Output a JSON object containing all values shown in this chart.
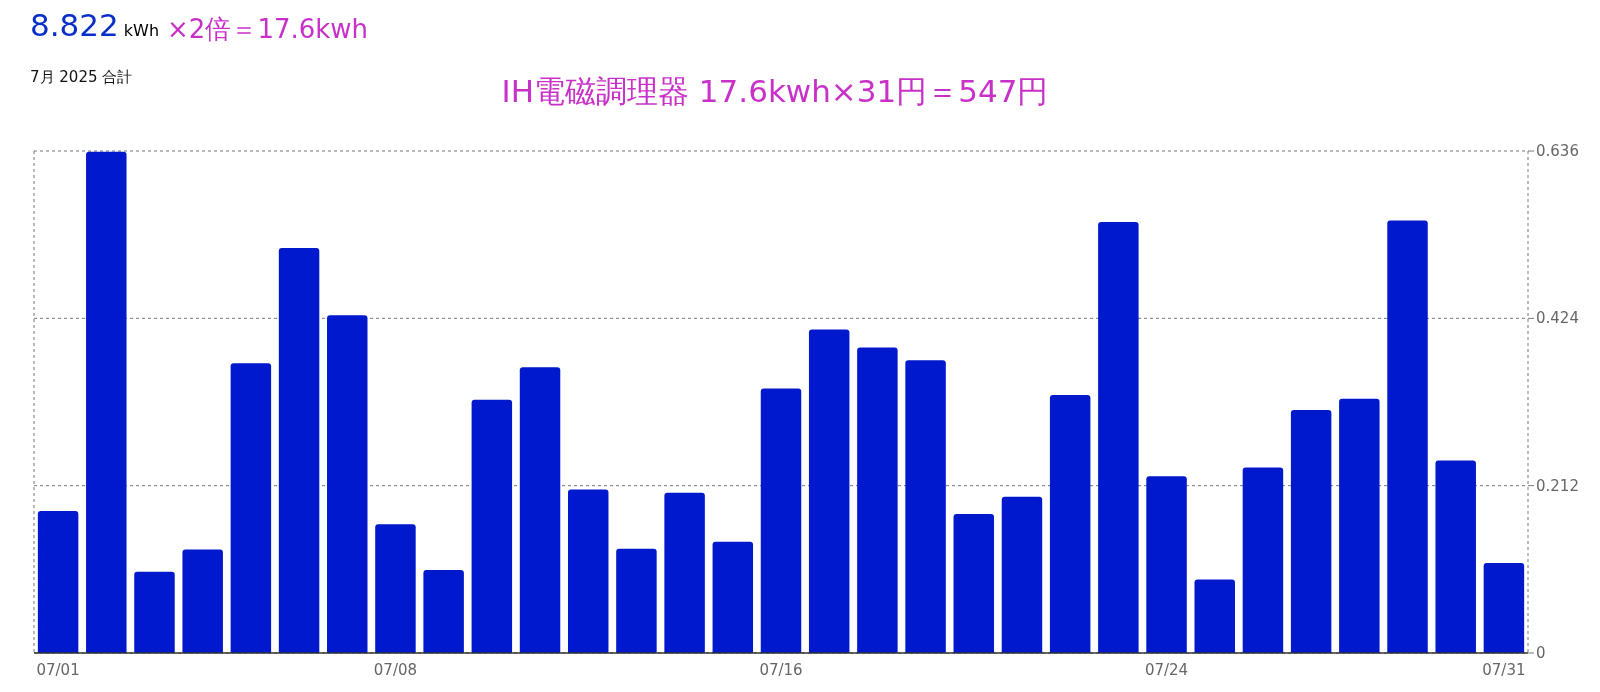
{
  "chart_data": {
    "type": "bar",
    "title": "8.822 kWh",
    "subtitle": "7月 2025 合計",
    "annotations": [
      "×2倍＝17.6kwh",
      "IH電磁調理器 17.6kwh×31円＝547円"
    ],
    "categories": [
      "07/01",
      null,
      null,
      null,
      null,
      null,
      null,
      "07/08",
      null,
      null,
      null,
      null,
      null,
      null,
      null,
      "07/16",
      null,
      null,
      null,
      null,
      null,
      null,
      null,
      "07/24",
      null,
      null,
      null,
      null,
      null,
      null,
      "07/31"
    ],
    "values": [
      0.18,
      0.635,
      0.103,
      0.131,
      0.367,
      0.513,
      0.428,
      0.163,
      0.105,
      0.321,
      0.362,
      0.207,
      0.132,
      0.203,
      0.141,
      0.335,
      0.41,
      0.387,
      0.371,
      0.176,
      0.198,
      0.327,
      0.546,
      0.224,
      0.093,
      0.235,
      0.308,
      0.322,
      0.548,
      0.244,
      0.114
    ],
    "color": "#0019cc",
    "ylim": [
      0,
      0.636
    ],
    "yticks": [
      0,
      0.212,
      0.424,
      0.636
    ],
    "grid": "y"
  }
}
